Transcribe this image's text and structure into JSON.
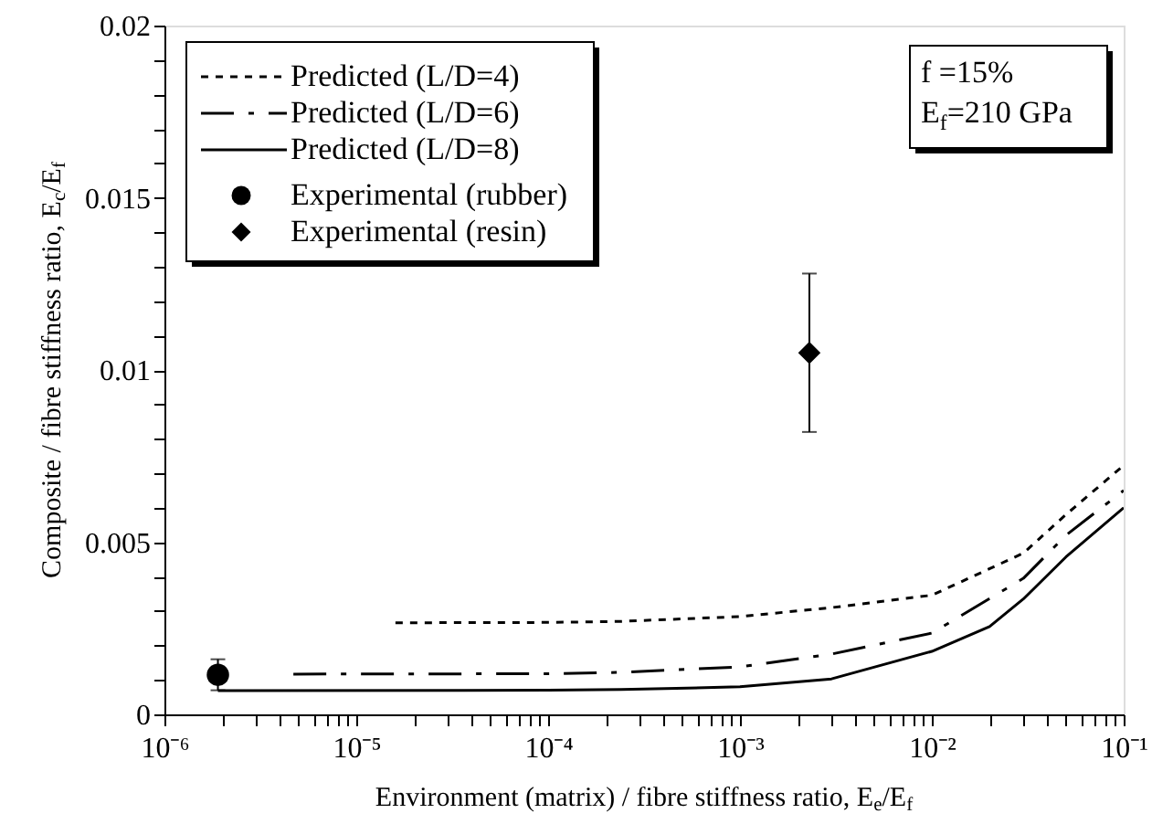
{
  "chart_data": {
    "type": "line",
    "xlabel": "Environment (matrix) / fibre stiffness ratio, E$_{e}$/E$_{f}$",
    "ylabel": "Composite / fibre stiffness ratio, E$_{c}$/E$_{f}$",
    "log": "x",
    "xlim": [
      1e-06,
      0.1
    ],
    "ylim": [
      0,
      0.02
    ],
    "xticks": [
      {
        "value": 1e-06,
        "label": "10⁻⁶"
      },
      {
        "value": 2e-06,
        "label": null
      },
      {
        "value": 3e-06,
        "label": null
      },
      {
        "value": 4e-06,
        "label": null
      },
      {
        "value": 5e-06,
        "label": null
      },
      {
        "value": 6e-06,
        "label": null
      },
      {
        "value": 7e-06,
        "label": null
      },
      {
        "value": 8e-06,
        "label": null
      },
      {
        "value": 9e-06,
        "label": null
      },
      {
        "value": 1e-05,
        "label": "10⁻⁵"
      },
      {
        "value": 2e-05,
        "label": null
      },
      {
        "value": 3e-05,
        "label": null
      },
      {
        "value": 4e-05,
        "label": null
      },
      {
        "value": 5e-05,
        "label": null
      },
      {
        "value": 6e-05,
        "label": null
      },
      {
        "value": 7e-05,
        "label": null
      },
      {
        "value": 8e-05,
        "label": null
      },
      {
        "value": 9e-05,
        "label": null
      },
      {
        "value": 0.0001,
        "label": "10⁻⁴"
      },
      {
        "value": 0.0002,
        "label": null
      },
      {
        "value": 0.0003,
        "label": null
      },
      {
        "value": 0.0004,
        "label": null
      },
      {
        "value": 0.0005,
        "label": null
      },
      {
        "value": 0.0006,
        "label": null
      },
      {
        "value": 0.0007,
        "label": null
      },
      {
        "value": 0.0008,
        "label": null
      },
      {
        "value": 0.0009,
        "label": null
      },
      {
        "value": 0.001,
        "label": "10⁻³"
      },
      {
        "value": 0.002,
        "label": null
      },
      {
        "value": 0.003,
        "label": null
      },
      {
        "value": 0.004,
        "label": null
      },
      {
        "value": 0.005,
        "label": null
      },
      {
        "value": 0.006,
        "label": null
      },
      {
        "value": 0.007,
        "label": null
      },
      {
        "value": 0.008,
        "label": null
      },
      {
        "value": 0.009,
        "label": null
      },
      {
        "value": 0.01,
        "label": "10⁻²"
      },
      {
        "value": 0.02,
        "label": null
      },
      {
        "value": 0.03,
        "label": null
      },
      {
        "value": 0.04,
        "label": null
      },
      {
        "value": 0.05,
        "label": null
      },
      {
        "value": 0.06,
        "label": null
      },
      {
        "value": 0.07,
        "label": null
      },
      {
        "value": 0.08,
        "label": null
      },
      {
        "value": 0.09,
        "label": null
      },
      {
        "value": 0.1,
        "label": "10⁻¹"
      }
    ],
    "yticks": [
      0,
      {
        "value": 0.001,
        "label": null
      },
      {
        "value": 0.002,
        "label": null
      },
      {
        "value": 0.003,
        "label": null
      },
      {
        "value": 0.004,
        "label": null
      },
      0.005,
      {
        "value": 0.006,
        "label": null
      },
      {
        "value": 0.007,
        "label": null
      },
      {
        "value": 0.008,
        "label": null
      },
      {
        "value": 0.009,
        "label": null
      },
      0.01,
      {
        "value": 0.011,
        "label": null
      },
      {
        "value": 0.012,
        "label": null
      },
      {
        "value": 0.013,
        "label": null
      },
      {
        "value": 0.014,
        "label": null
      },
      0.015,
      {
        "value": 0.016,
        "label": null
      },
      {
        "value": 0.017,
        "label": null
      },
      {
        "value": 0.018,
        "label": null
      },
      {
        "value": 0.019,
        "label": null
      },
      0.02
    ],
    "grid": false,
    "legend": "top left",
    "annotations": [
      "f =15%",
      "E$_{f}$=210 GPa"
    ],
    "series": [
      {
        "name": "Predicted (L/D=4)",
        "color": "#000000",
        "line_style": "dotted",
        "marker": "none",
        "x": [
          1.6e-05,
          0.0001,
          0.00024,
          0.001,
          0.003,
          0.01,
          0.03,
          0.05,
          0.1
        ],
        "values": [
          0.00266,
          0.00267,
          0.0027,
          0.00284,
          0.0031,
          0.00346,
          0.00468,
          0.0058,
          0.00723
        ]
      },
      {
        "name": "Predicted (L/D=6)",
        "color": "#000000",
        "line_style": "dashed",
        "marker": "none",
        "x": [
          4.7e-06,
          0.0001,
          0.00024,
          0.001,
          0.003,
          0.01,
          0.03,
          0.05,
          0.1
        ],
        "values": [
          0.00117,
          0.00118,
          0.00122,
          0.00138,
          0.00175,
          0.00236,
          0.00395,
          0.0052,
          0.0065
        ]
      },
      {
        "name": "Predicted (L/D=8)",
        "color": "#000000",
        "line_style": "solid",
        "marker": "none",
        "x": [
          1.9e-06,
          0.0001,
          0.00024,
          0.001,
          0.003,
          0.01,
          0.02,
          0.03,
          0.05,
          0.1
        ],
        "values": [
          0.00069,
          0.0007,
          0.00072,
          0.0008,
          0.00103,
          0.00183,
          0.00255,
          0.00335,
          0.00457,
          0.006
        ]
      },
      {
        "name": "Experimental (rubber)",
        "type": "scatter",
        "color": "#000000",
        "marker": "circle",
        "x": [
          1.9e-06
        ],
        "values": [
          0.00115
        ],
        "errors": [
          0.00045
        ]
      },
      {
        "name": "Experimental (resin)",
        "type": "scatter",
        "color": "#000000",
        "marker": "diamond",
        "x": [
          0.0023
        ],
        "values": [
          0.0105
        ],
        "errors": [
          0.0023
        ]
      }
    ]
  }
}
